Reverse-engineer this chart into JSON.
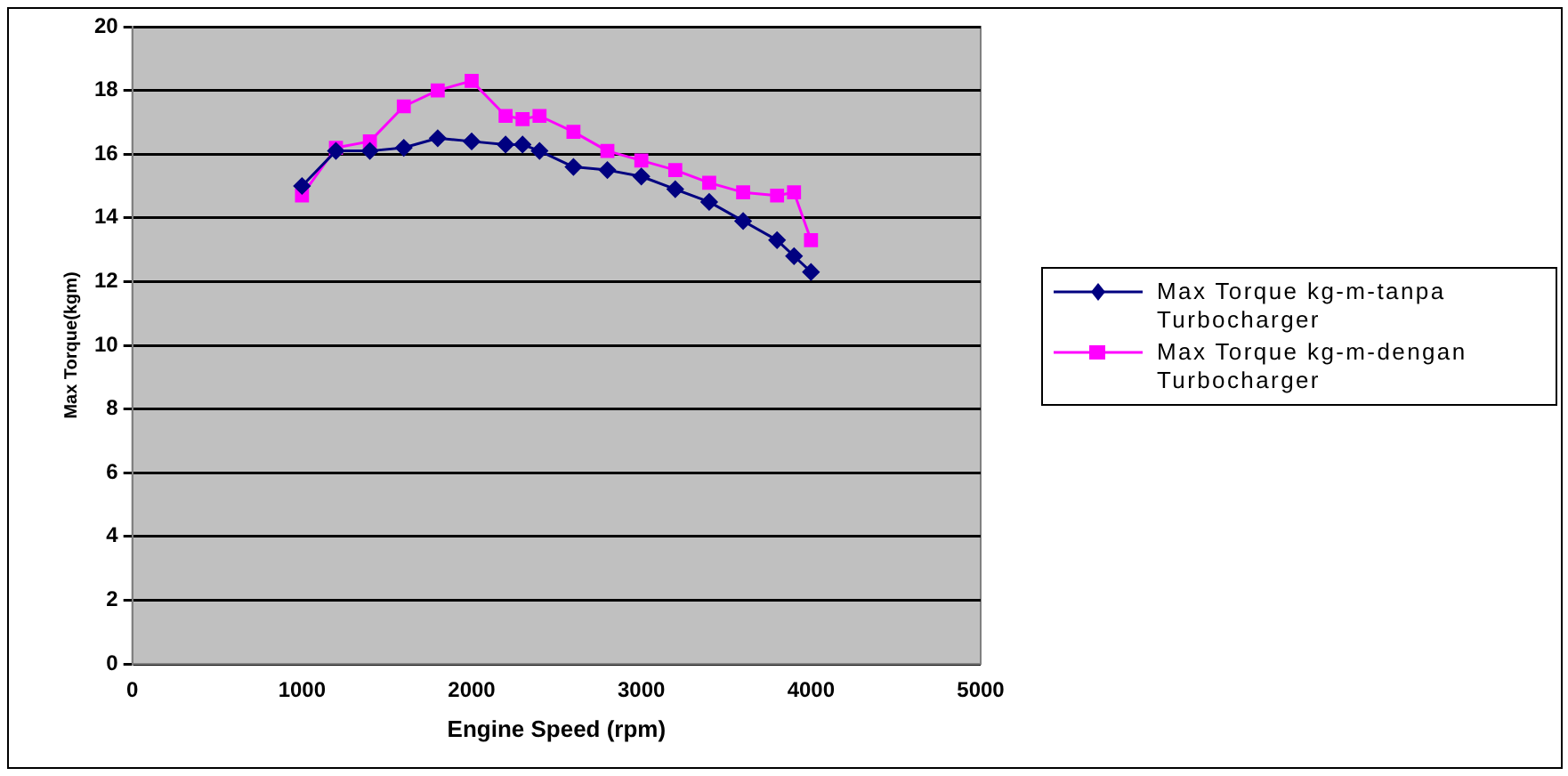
{
  "chart_data": {
    "type": "line",
    "xlabel": "Engine Speed (rpm)",
    "ylabel": "Max Torque(kgm)",
    "xlim": [
      0,
      5000
    ],
    "xticks": [
      0,
      1000,
      2000,
      3000,
      4000,
      5000
    ],
    "ylim": [
      0,
      20
    ],
    "yticks": [
      0,
      2,
      4,
      6,
      8,
      10,
      12,
      14,
      16,
      18,
      20
    ],
    "grid": "y",
    "legend": "right",
    "x": [
      1000,
      1200,
      1400,
      1600,
      1800,
      2000,
      2200,
      2300,
      2400,
      2600,
      2800,
      3000,
      3200,
      3400,
      3600,
      3800,
      3900,
      4000
    ],
    "series": [
      {
        "name": "Max Torque kg-m-tanpa Turbocharger",
        "color": "#000080",
        "marker": "diamond",
        "values": [
          15.0,
          16.1,
          16.1,
          16.2,
          16.5,
          16.4,
          16.3,
          16.3,
          16.1,
          15.6,
          15.5,
          15.3,
          14.9,
          14.5,
          13.9,
          13.3,
          12.8,
          12.3
        ]
      },
      {
        "name": "Max Torque kg-m-dengan Turbocharger",
        "color": "#ff00ff",
        "marker": "square",
        "values": [
          14.7,
          16.2,
          16.4,
          17.5,
          18.0,
          18.3,
          17.2,
          17.1,
          17.2,
          16.7,
          16.1,
          15.8,
          15.5,
          15.1,
          14.8,
          14.7,
          14.8,
          13.3
        ]
      }
    ]
  }
}
